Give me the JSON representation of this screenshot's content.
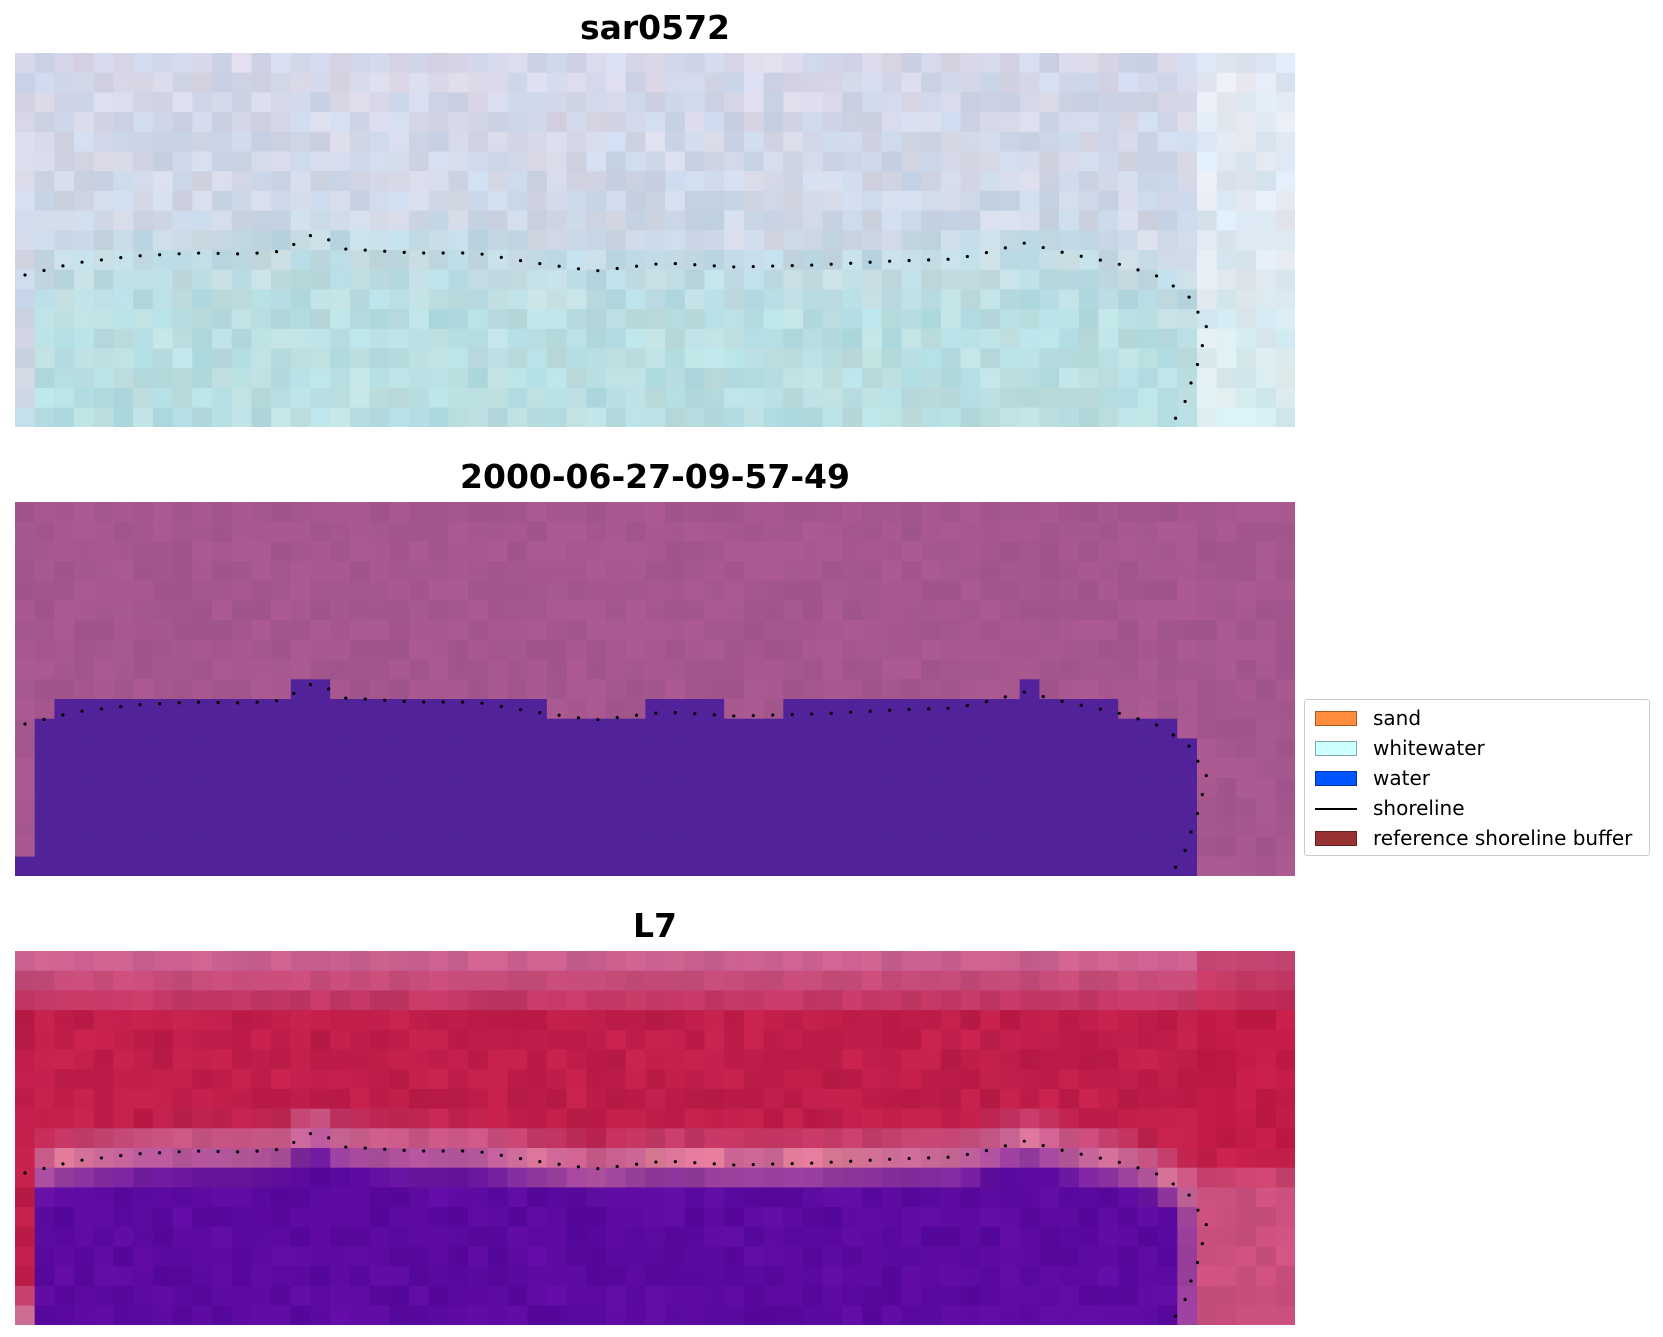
{
  "panels": [
    {
      "title": "sar0572",
      "style": "rgb-composite",
      "colors": {
        "top": "#d6d8ea",
        "mid": "#c6d9e4",
        "bottom": "#b9dfe2"
      }
    },
    {
      "title": "2000-06-27-09-57-49",
      "style": "classification",
      "colors": {
        "land": "#a6578e",
        "water": "#51229a"
      }
    },
    {
      "title": "L7",
      "style": "index-map",
      "colors": {
        "land": "#c01e4a",
        "water": "#5c0aa0",
        "edge": "#cc6a9a"
      }
    }
  ],
  "legend": {
    "items": [
      {
        "label": "sand",
        "color": "#ff8c3c",
        "kind": "patch"
      },
      {
        "label": "whitewater",
        "color": "#ccffff",
        "kind": "patch"
      },
      {
        "label": "water",
        "color": "#0055ff",
        "kind": "patch"
      },
      {
        "label": "shoreline",
        "color": "#000000",
        "kind": "line"
      },
      {
        "label": "reference shoreline buffer",
        "color": "#993333",
        "kind": "patch"
      }
    ]
  }
}
